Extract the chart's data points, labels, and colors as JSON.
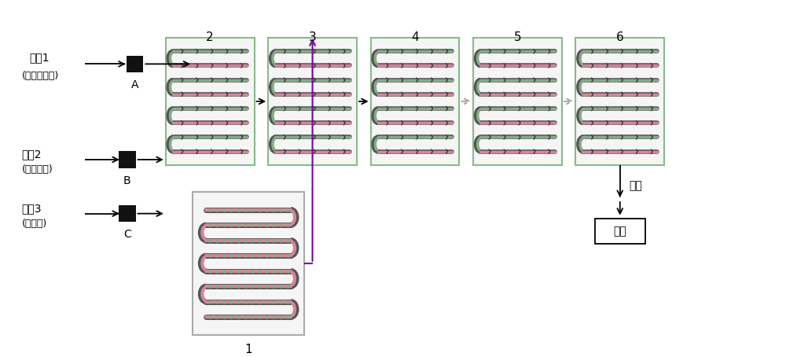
{
  "bg_color": "#ffffff",
  "reactor_bg": "#f5f5f5",
  "reactor_border_gray": "#aaaaaa",
  "reactor_border_green": "#88bb88",
  "channel_pink": "#d4869a",
  "channel_green": "#88aa88",
  "channel_dark": "#555555",
  "pump_color": "#111111",
  "arrow_black": "#000000",
  "arrow_purple": "#7700aa",
  "arrow_gray": "#999999",
  "labels": {
    "material1": "物料1",
    "material1_sub": "(邻氯苯甲酸)",
    "material2": "物料2",
    "material2_sub": "(发烟硝酸)",
    "material3": "物料3",
    "material3_sub": "(浓硫酸)",
    "pump_A": "A",
    "pump_B": "B",
    "pump_C": "C",
    "r1": "1",
    "r2": "2",
    "r3": "3",
    "r4": "4",
    "r5": "5",
    "r6": "6",
    "process": "处理",
    "product": "产品"
  },
  "font_size": 10,
  "font_size_sub": 9
}
